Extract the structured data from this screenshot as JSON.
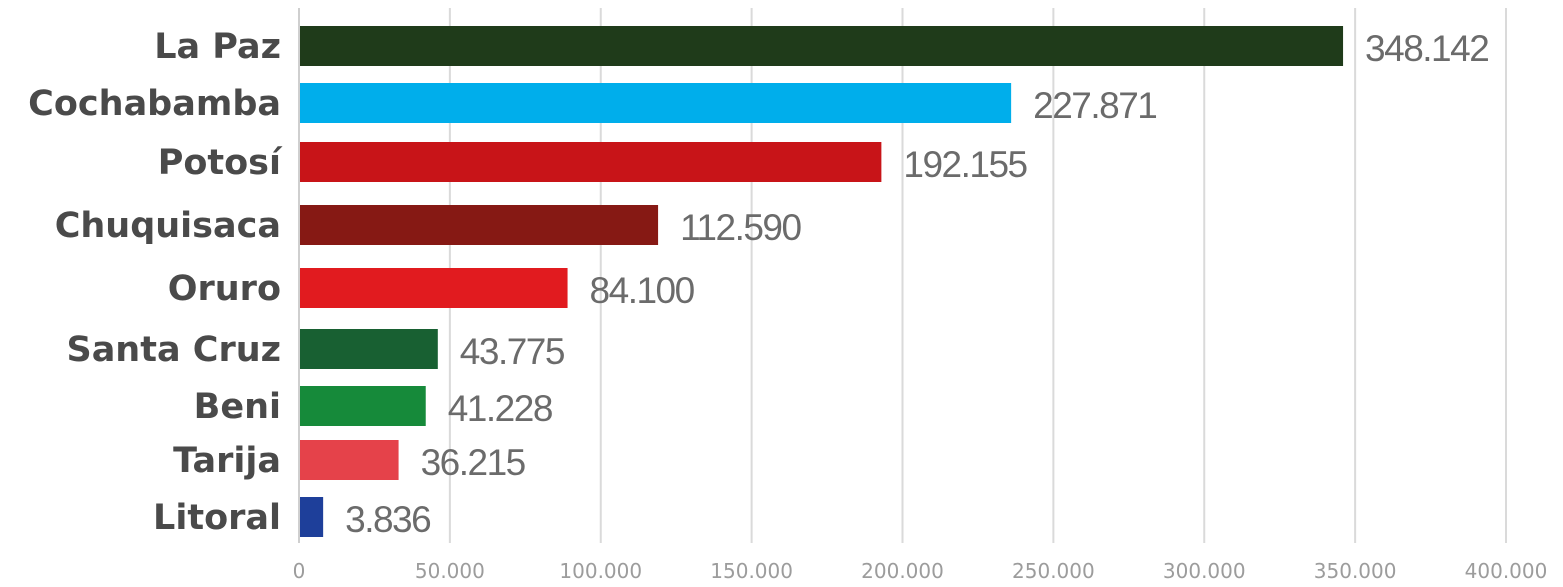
{
  "chart_data": {
    "type": "bar",
    "orientation": "horizontal",
    "categories": [
      "La Paz",
      "Cochabamba",
      "Potosí",
      "Chuquisaca",
      "Oruro",
      "Santa Cruz",
      "Beni",
      "Tarija",
      "Litoral"
    ],
    "values": [
      348142,
      227871,
      192155,
      112590,
      84100,
      43775,
      41228,
      36215,
      3836
    ],
    "bar_lengths": [
      346000,
      236000,
      193000,
      119000,
      89000,
      46000,
      42000,
      33000,
      8000
    ],
    "value_labels": [
      "348.142",
      "227.871",
      "192.155",
      "112.590",
      "84.100",
      "43.775",
      "41.228",
      "36.215",
      "3.836"
    ],
    "colors": [
      "#1f3b1a",
      "#00aeeb",
      "#c81418",
      "#861914",
      "#e11b1f",
      "#186032",
      "#168a3a",
      "#e5424a",
      "#1e3f9a"
    ],
    "xticks": [
      0,
      50000,
      100000,
      150000,
      200000,
      250000,
      300000,
      350000,
      400000
    ],
    "xtick_labels": [
      "0",
      "50.000",
      "100.000",
      "150.000",
      "200.000",
      "250.000",
      "300.000",
      "350.000",
      "400.000"
    ],
    "xlim": [
      0,
      400000
    ],
    "title": "",
    "xlabel": "",
    "ylabel": "",
    "grid": true,
    "legend": "none"
  }
}
